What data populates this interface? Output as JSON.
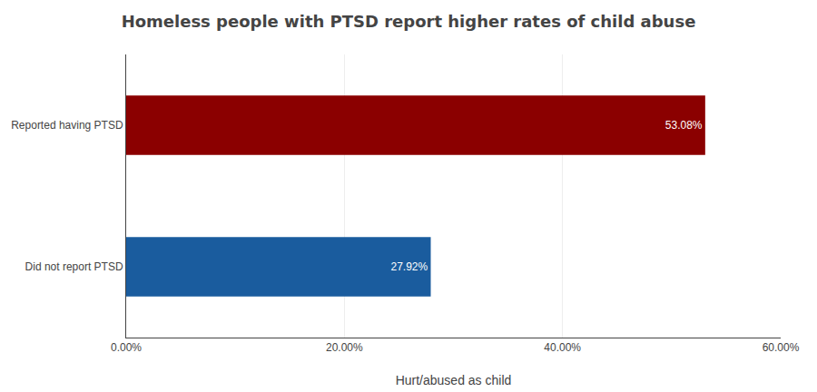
{
  "chart_data": {
    "type": "bar",
    "orientation": "horizontal",
    "title": "Homeless people with PTSD report higher rates of child abuse",
    "xlabel": "Hurt/abused as child",
    "categories": [
      "Did not report PTSD",
      "Reported having PTSD"
    ],
    "values": [
      27.92,
      53.08
    ],
    "value_labels": [
      "27.92%",
      "53.08%"
    ],
    "colors": [
      "#1a5c9e",
      "#8b0000"
    ],
    "xlim": [
      0,
      60
    ],
    "xticks": [
      {
        "value": 0,
        "label": "0.00%"
      },
      {
        "value": 20,
        "label": "20.00%"
      },
      {
        "value": 40,
        "label": "40.00%"
      },
      {
        "value": 60,
        "label": "60.00%"
      }
    ],
    "grid": true,
    "data_labels": true
  }
}
